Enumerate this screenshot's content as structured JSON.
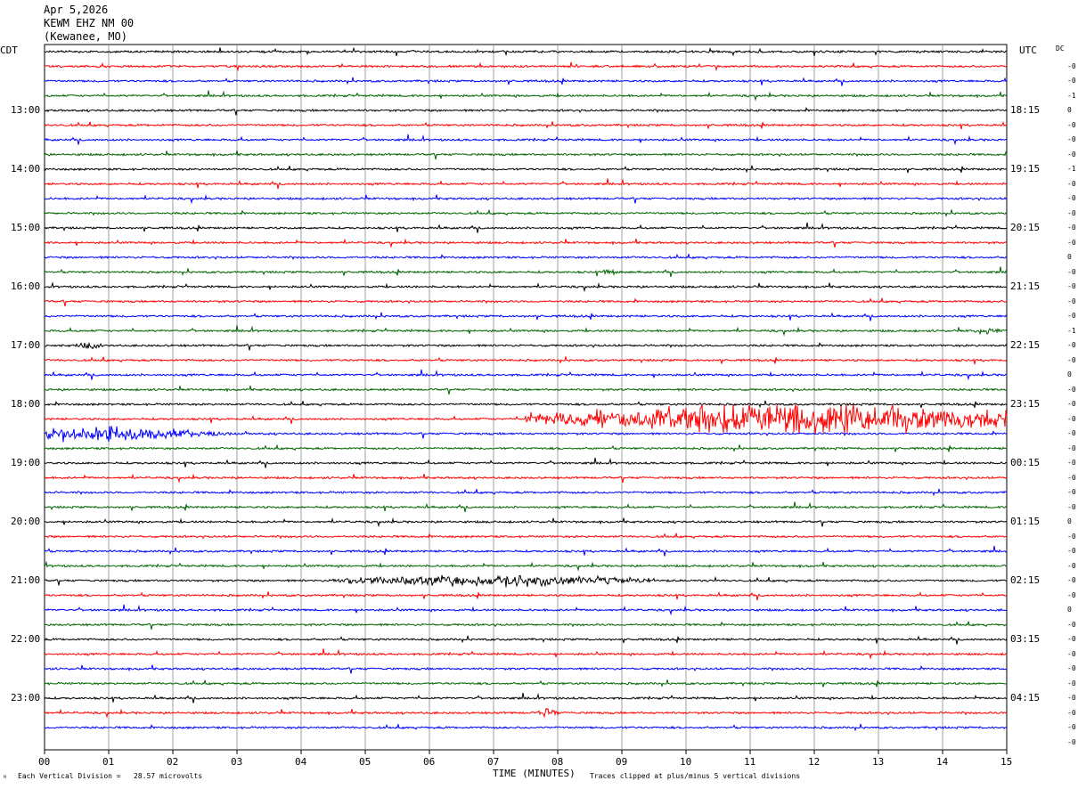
{
  "header": {
    "date": "Apr 5,2026",
    "station": "KEWM EHZ NM 00",
    "location": "(Kewanee, MO)"
  },
  "axis": {
    "left_tz": "CDT",
    "right_tz": "UTC",
    "dc_label": "DC",
    "xlabel": "TIME (MINUTES)",
    "xticks": [
      "00",
      "01",
      "02",
      "03",
      "04",
      "05",
      "06",
      "07",
      "08",
      "09",
      "10",
      "11",
      "12",
      "13",
      "14",
      "15"
    ],
    "left_hours": [
      "13:00",
      "14:00",
      "15:00",
      "16:00",
      "17:00",
      "18:00",
      "19:00",
      "20:00",
      "21:00",
      "22:00",
      "23:00"
    ],
    "right_hours": [
      "18:15",
      "19:15",
      "20:15",
      "21:15",
      "22:15",
      "23:15",
      "00:15",
      "01:15",
      "02:15",
      "03:15",
      "04:15"
    ]
  },
  "footer": {
    "scale_note": "Each Vertical Division =   28.57 microvolts",
    "clip_note": "Traces clipped at plus/minus 5 vertical divisions"
  },
  "colors": {
    "trace_cycle": [
      "#000000",
      "#ff0000",
      "#0000ff",
      "#006400"
    ],
    "grid": "#888888"
  },
  "dc_offsets": [
    "-0",
    "-0",
    "-1",
    "0",
    "-0",
    "-0",
    "-0",
    "-1",
    "-0",
    "-0",
    "-0",
    "-0",
    "-0",
    "0",
    "-0",
    "-0",
    "-0",
    "-0",
    "-1",
    "-0",
    "-0",
    "0",
    "-0",
    "-0",
    "-0",
    "-0",
    "-0",
    "-0",
    "-0",
    "-0",
    "-0",
    "0",
    "-0",
    "-0",
    "-0",
    "-0",
    "-0",
    "0",
    "-0",
    "-0",
    "-0",
    "-0",
    "-0",
    "-0",
    "-0",
    "-0",
    "-0"
  ],
  "chart_data": {
    "type": "line",
    "title": "KEWM EHZ NM 00",
    "xlabel": "TIME (MINUTES)",
    "xlim": [
      0,
      15
    ],
    "trace_interval_minutes": 15,
    "trace_count": 47,
    "events": [
      {
        "trace": 25,
        "start_min": 7.5,
        "end_min": 15,
        "peak_min": 11.8,
        "amplitude": 5
      },
      {
        "trace": 26,
        "start_min": 0,
        "end_min": 3,
        "peak_min": 1,
        "amplitude": 2
      },
      {
        "trace": 36,
        "start_min": 4.5,
        "end_min": 9.5,
        "peak_min": 7,
        "amplitude": 1.6
      },
      {
        "trace": 45,
        "start_min": 7.7,
        "end_min": 8.0,
        "peak_min": 7.85,
        "amplitude": 1.2
      },
      {
        "trace": 19,
        "start_min": 14.5,
        "end_min": 14.9,
        "peak_min": 14.7,
        "amplitude": 1
      },
      {
        "trace": 20,
        "start_min": 0.5,
        "end_min": 0.9,
        "peak_min": 0.7,
        "amplitude": 1
      },
      {
        "trace": 15,
        "start_min": 8.7,
        "end_min": 9.0,
        "peak_min": 8.8,
        "amplitude": 0.8
      }
    ]
  }
}
